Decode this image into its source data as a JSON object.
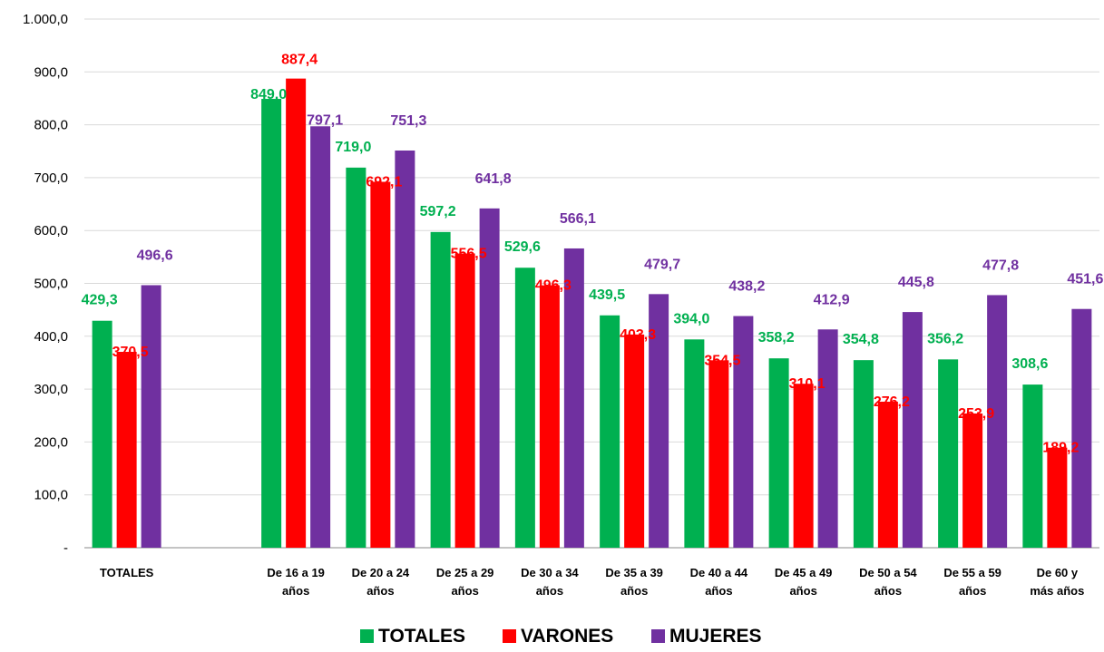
{
  "chart_data": {
    "type": "bar",
    "categories": [
      [
        "TOTALES"
      ],
      [],
      [
        "De 16 a 19",
        "años"
      ],
      [
        "De 20 a 24",
        "años"
      ],
      [
        "De 25 a 29",
        "años"
      ],
      [
        "De 30 a 34",
        "años"
      ],
      [
        "De 35 a 39",
        "años"
      ],
      [
        "De 40 a 44",
        "años"
      ],
      [
        "De 45 a 49",
        "años"
      ],
      [
        "De 50 a 54",
        "años"
      ],
      [
        "De 55 a 59",
        "años"
      ],
      [
        "De 60 y",
        "más años"
      ]
    ],
    "series": [
      {
        "name": "TOTALES",
        "color": "#00b050",
        "values": [
          429.3,
          null,
          849.0,
          719.0,
          597.2,
          529.6,
          439.5,
          394.0,
          358.2,
          354.8,
          356.2,
          308.6
        ],
        "labels": [
          "429,3",
          "",
          "849,0",
          "719,0",
          "597,2",
          "529,6",
          "439,5",
          "394,0",
          "358,2",
          "354,8",
          "356,2",
          "308,6"
        ]
      },
      {
        "name": "VARONES",
        "color": "#ff0000",
        "values": [
          370.5,
          null,
          887.4,
          692.1,
          556.5,
          496.3,
          403.3,
          354.5,
          310.1,
          276.2,
          253.9,
          189.2
        ],
        "labels": [
          "370,5",
          "",
          "887,4",
          "692,1",
          "556,5",
          "496,3",
          "403,3",
          "354,5",
          "310,1",
          "276,2",
          "253,9",
          "189,2"
        ]
      },
      {
        "name": "MUJERES",
        "color": "#7030a0",
        "values": [
          496.6,
          null,
          797.1,
          751.3,
          641.8,
          566.1,
          479.7,
          438.2,
          412.9,
          445.8,
          477.8,
          451.6
        ],
        "labels": [
          "496,6",
          "",
          "797,1",
          "751,3",
          "641,8",
          "566,1",
          "479,7",
          "438,2",
          "412,9",
          "445,8",
          "477,8",
          "451,6"
        ]
      }
    ],
    "y_ticks": [
      {
        "value": 0,
        "label": "-"
      },
      {
        "value": 100,
        "label": "100,0"
      },
      {
        "value": 200,
        "label": "200,0"
      },
      {
        "value": 300,
        "label": "300,0"
      },
      {
        "value": 400,
        "label": "400,0"
      },
      {
        "value": 500,
        "label": "500,0"
      },
      {
        "value": 600,
        "label": "600,0"
      },
      {
        "value": 700,
        "label": "700,0"
      },
      {
        "value": 800,
        "label": "800,0"
      },
      {
        "value": 900,
        "label": "900,0"
      },
      {
        "value": 1000,
        "label": "1.000,0"
      }
    ],
    "ylim": [
      0,
      1000
    ],
    "grid": true,
    "legend_position": "bottom",
    "title": "",
    "xlabel": "",
    "ylabel": ""
  }
}
